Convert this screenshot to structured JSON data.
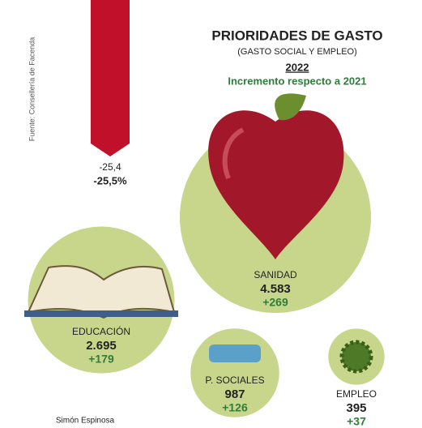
{
  "chart_data": {
    "type": "bubble",
    "title": "PRIORIDADES DE GASTO",
    "subtitle": "(GASTO SOCIAL Y EMPLEO)",
    "year": "2022",
    "note": "Incremento respecto a 2021",
    "source": "Fuente: Consellería de Facenda",
    "author": "Simón Espinosa",
    "categories": [
      "SANIDAD",
      "EDUCACIÓN",
      "P. SOCIALES",
      "EMPLEO"
    ],
    "values": [
      4583,
      2695,
      987,
      395
    ],
    "value_labels": [
      "4.583",
      "2.695",
      "987",
      "395"
    ],
    "increments": [
      269,
      179,
      126,
      37
    ],
    "increment_labels": [
      "+269",
      "+179",
      "+126",
      "+37"
    ],
    "color": "#c8d68c",
    "increment_color": "#2f7d3a",
    "bar": {
      "value": -25.4,
      "value_label": "-25,4",
      "percent": -25.5,
      "percent_label": "-25,5%",
      "color": "#c0102a"
    }
  }
}
